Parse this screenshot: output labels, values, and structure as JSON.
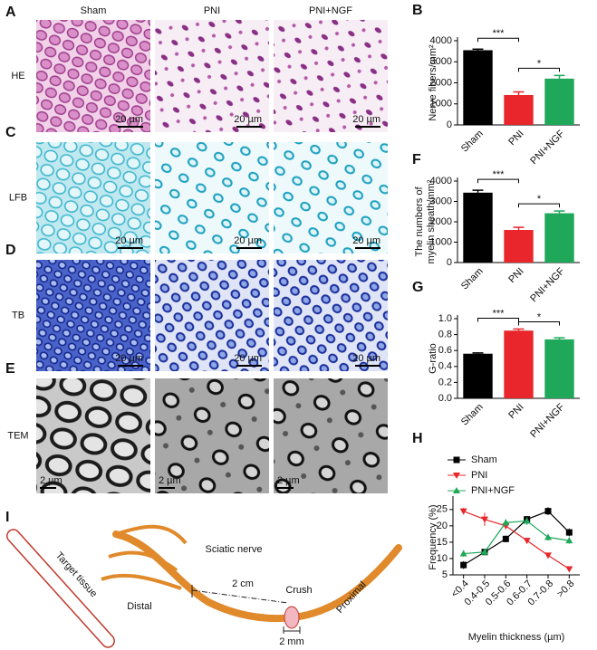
{
  "image_panels": {
    "columns": [
      "Sham",
      "PNI",
      "PNI+NGF"
    ],
    "rows": [
      {
        "letter": "A",
        "label": "HE",
        "scale_bar": "20 µm"
      },
      {
        "letter": "C",
        "label": "LFB",
        "scale_bar": "20 µm"
      },
      {
        "letter": "D",
        "label": "TB",
        "scale_bar": "20 µm"
      },
      {
        "letter": "E",
        "label": "TEM",
        "scale_bar": "2 µm"
      }
    ]
  },
  "chart_data": [
    {
      "panel": "B",
      "type": "bar",
      "ylabel": [
        "Nerve fibers/mm²"
      ],
      "categories": [
        "Sham",
        "PNI",
        "PNI+NGF"
      ],
      "values": [
        3550,
        1420,
        2200
      ],
      "errors": [
        50,
        150,
        150
      ],
      "colors": [
        "#000000",
        "#e8262b",
        "#1fa85a"
      ],
      "ylim": [
        0,
        4000
      ],
      "yticks": [
        0,
        1000,
        2000,
        3000,
        4000
      ],
      "significance": [
        "***",
        "*"
      ]
    },
    {
      "panel": "F",
      "type": "bar",
      "ylabel": [
        "The numbers of",
        "myelin sheath/mm²"
      ],
      "categories": [
        "Sham",
        "PNI",
        "PNI+NGF"
      ],
      "values": [
        3430,
        1600,
        2420
      ],
      "errors": [
        120,
        130,
        110
      ],
      "colors": [
        "#000000",
        "#e8262b",
        "#1fa85a"
      ],
      "ylim": [
        0,
        4000
      ],
      "yticks": [
        0,
        1000,
        2000,
        3000,
        4000
      ],
      "significance": [
        "***",
        "*"
      ]
    },
    {
      "panel": "G",
      "type": "bar",
      "ylabel": [
        "G-ratio"
      ],
      "categories": [
        "Sham",
        "PNI",
        "PNI+NGF"
      ],
      "values": [
        0.56,
        0.85,
        0.74
      ],
      "errors": [
        0.01,
        0.02,
        0.02
      ],
      "colors": [
        "#000000",
        "#e8262b",
        "#1fa85a"
      ],
      "ylim": [
        0,
        1.0
      ],
      "yticks": [
        {
          "value": 0,
          "label": "0.0"
        },
        0.2,
        0.4,
        0.6,
        0.8,
        {
          "value": 1,
          "label": "1.0"
        }
      ],
      "significance": [
        "***",
        "*"
      ]
    },
    {
      "panel": "H",
      "type": "line",
      "ylabel": [
        "Frequency (%)"
      ],
      "xlabel": "Myelin thickness (µm)",
      "categories": [
        "<0.4",
        "0.4-0.5",
        "0.5-0.6",
        "0.6-0.7",
        "0.7-0.8",
        ">0.8"
      ],
      "series": [
        {
          "name": "Sham",
          "color": "#000000",
          "marker": "square",
          "values": [
            8,
            12,
            16,
            22,
            24.5,
            18
          ],
          "errors": [
            1.2,
            1,
            1,
            1,
            1.2,
            1.2
          ]
        },
        {
          "name": "PNI",
          "color": "#e8262b",
          "marker": "triangle-down",
          "values": [
            24.5,
            22,
            20,
            15.5,
            11,
            6.8
          ],
          "errors": [
            1,
            2,
            1,
            0.8,
            0.8,
            0.6
          ]
        },
        {
          "name": "PNI+NGF",
          "color": "#1fa85a",
          "marker": "triangle-up",
          "values": [
            11.5,
            12,
            21,
            21.5,
            16.5,
            15.5
          ],
          "errors": [
            1,
            1,
            1,
            1.2,
            1,
            1
          ]
        }
      ],
      "ylim": [
        5,
        28
      ],
      "yticks": [
        5,
        10,
        15,
        20,
        25
      ]
    }
  ],
  "diagram": {
    "panel": "I",
    "target": "Target tissue",
    "distal": "Distal",
    "nerve": "Sciatic nerve",
    "distance": "2 cm",
    "crush": "Crush",
    "proximal": "Proximal",
    "crush_width": "2 mm"
  }
}
